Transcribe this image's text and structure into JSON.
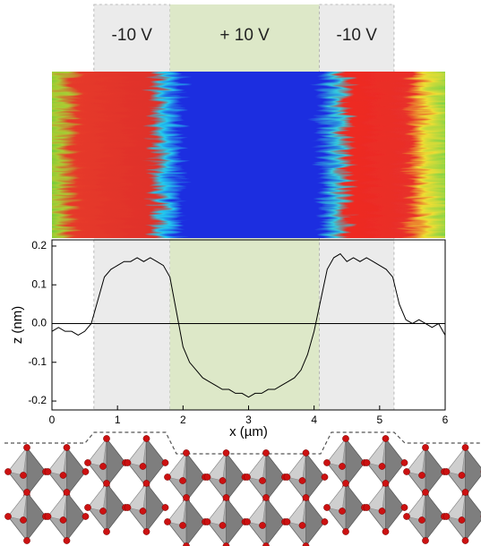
{
  "chart_data": {
    "type": "line",
    "x_label": "x (µm)",
    "y_label": "z (nm)",
    "color": "#000000",
    "regions": [
      {
        "label": "-10 V",
        "x": [
          0.64,
          1.8
        ],
        "color": "#ebebeb"
      },
      {
        "label": "+ 10 V",
        "x": [
          1.8,
          4.08
        ],
        "color": "#dde8c8"
      },
      {
        "label": "-10 V",
        "x": [
          4.08,
          5.22
        ],
        "color": "#ebebeb"
      }
    ],
    "x": [
      0,
      0.1,
      0.2,
      0.3,
      0.4,
      0.5,
      0.6,
      0.7,
      0.8,
      0.9,
      1.0,
      1.1,
      1.2,
      1.3,
      1.4,
      1.5,
      1.6,
      1.7,
      1.8,
      1.9,
      2.0,
      2.1,
      2.2,
      2.3,
      2.4,
      2.5,
      2.6,
      2.7,
      2.8,
      2.9,
      3.0,
      3.1,
      3.2,
      3.3,
      3.4,
      3.5,
      3.6,
      3.7,
      3.8,
      3.9,
      4.0,
      4.1,
      4.2,
      4.3,
      4.4,
      4.5,
      4.6,
      4.7,
      4.8,
      4.9,
      5.0,
      5.1,
      5.2,
      5.3,
      5.4,
      5.5,
      5.6,
      5.7,
      5.8,
      5.9,
      6.0
    ],
    "values": [
      -0.02,
      -0.01,
      -0.02,
      -0.02,
      -0.03,
      -0.02,
      0.0,
      0.06,
      0.12,
      0.14,
      0.15,
      0.16,
      0.16,
      0.17,
      0.16,
      0.17,
      0.16,
      0.15,
      0.12,
      0.03,
      -0.06,
      -0.1,
      -0.12,
      -0.14,
      -0.15,
      -0.16,
      -0.17,
      -0.17,
      -0.18,
      -0.18,
      -0.19,
      -0.18,
      -0.18,
      -0.17,
      -0.17,
      -0.16,
      -0.15,
      -0.14,
      -0.12,
      -0.08,
      -0.02,
      0.06,
      0.14,
      0.17,
      0.18,
      0.16,
      0.17,
      0.16,
      0.17,
      0.16,
      0.15,
      0.14,
      0.12,
      0.05,
      0.01,
      0.0,
      0.01,
      0.0,
      -0.01,
      0.0,
      -0.03
    ],
    "xlim": [
      0,
      6
    ],
    "xticks": [
      0,
      1,
      2,
      3,
      4,
      5,
      6
    ],
    "ylim": [
      -0.223,
      0.216
    ],
    "yticks": [
      -0.2,
      -0.1,
      {
        "value": 0,
        "label": "0.0"
      },
      0.1,
      0.2
    ],
    "zero_line": true
  }
}
